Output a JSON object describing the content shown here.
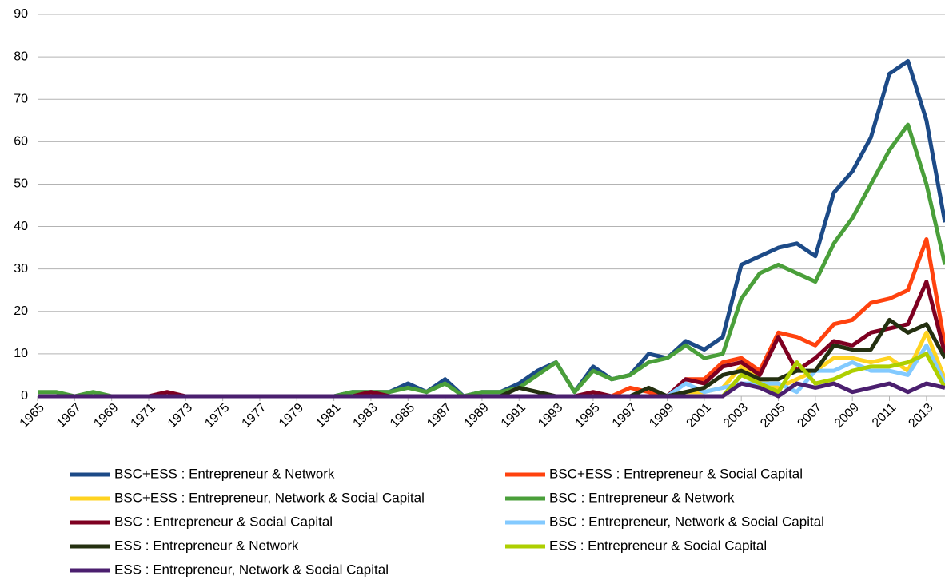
{
  "chart_data": {
    "type": "line",
    "x": [
      1965,
      1966,
      1967,
      1968,
      1969,
      1970,
      1971,
      1972,
      1973,
      1974,
      1975,
      1976,
      1977,
      1978,
      1979,
      1980,
      1981,
      1982,
      1983,
      1984,
      1985,
      1986,
      1987,
      1988,
      1989,
      1990,
      1991,
      1992,
      1993,
      1994,
      1995,
      1996,
      1997,
      1998,
      1999,
      2000,
      2001,
      2002,
      2003,
      2004,
      2005,
      2006,
      2007,
      2008,
      2009,
      2010,
      2011,
      2012,
      2013,
      2014
    ],
    "xlim": [
      1965,
      2014
    ],
    "xticks": [
      1965,
      1967,
      1969,
      1971,
      1973,
      1975,
      1977,
      1979,
      1981,
      1983,
      1985,
      1987,
      1989,
      1991,
      1993,
      1995,
      1997,
      1999,
      2001,
      2003,
      2005,
      2007,
      2009,
      2011,
      2013
    ],
    "ylim": [
      0,
      90
    ],
    "yticks": [
      0,
      10,
      20,
      30,
      40,
      50,
      60,
      70,
      80,
      90
    ],
    "grid": true,
    "legend": "bottom",
    "series": [
      {
        "name": "BSC+ESS : Entrepreneur & Network",
        "color": "#1c4a87",
        "values": [
          0,
          0,
          0,
          0,
          0,
          0,
          0,
          0,
          0,
          0,
          0,
          0,
          0,
          0,
          0,
          0,
          0,
          1,
          1,
          1,
          3,
          1,
          4,
          0,
          1,
          1,
          3,
          6,
          8,
          1,
          7,
          4,
          5,
          10,
          9,
          13,
          11,
          14,
          31,
          33,
          35,
          36,
          33,
          48,
          53,
          61,
          76,
          79,
          65,
          41
        ]
      },
      {
        "name": "BSC+ESS : Entrepreneur & Social Capital",
        "color": "#ff420e",
        "values": [
          0,
          0,
          0,
          0,
          0,
          0,
          0,
          0,
          0,
          0,
          0,
          0,
          0,
          0,
          0,
          0,
          0,
          0,
          0,
          0,
          0,
          0,
          0,
          0,
          0,
          0,
          0,
          0,
          0,
          0,
          0,
          0,
          2,
          1,
          0,
          4,
          4,
          8,
          9,
          6,
          15,
          14,
          12,
          17,
          18,
          22,
          23,
          25,
          37,
          12
        ]
      },
      {
        "name": "BSC+ESS : Entrepreneur, Network & Social Capital",
        "color": "#ffd320",
        "values": [
          0,
          0,
          0,
          0,
          0,
          0,
          0,
          0,
          0,
          0,
          0,
          0,
          0,
          0,
          0,
          0,
          0,
          0,
          0,
          0,
          0,
          0,
          0,
          0,
          0,
          0,
          0,
          0,
          0,
          0,
          0,
          0,
          0,
          0,
          0,
          1,
          1,
          2,
          7,
          4,
          2,
          4,
          6,
          9,
          9,
          8,
          9,
          6,
          15,
          4
        ]
      },
      {
        "name": "BSC : Entrepreneur & Network",
        "color": "#4a9f3a",
        "values": [
          1,
          1,
          0,
          1,
          0,
          0,
          0,
          0,
          0,
          0,
          0,
          0,
          0,
          0,
          0,
          0,
          0,
          1,
          1,
          1,
          2,
          1,
          3,
          0,
          1,
          1,
          2,
          5,
          8,
          1,
          6,
          4,
          5,
          8,
          9,
          12,
          9,
          10,
          23,
          29,
          31,
          29,
          27,
          36,
          42,
          50,
          58,
          64,
          50,
          31
        ]
      },
      {
        "name": "BSC : Entrepreneur & Social Capital",
        "color": "#7e0021",
        "values": [
          0,
          0,
          0,
          0,
          0,
          0,
          0,
          1,
          0,
          0,
          0,
          0,
          0,
          0,
          0,
          0,
          0,
          0,
          1,
          0,
          0,
          0,
          0,
          0,
          0,
          0,
          0,
          0,
          0,
          0,
          1,
          0,
          0,
          0,
          0,
          4,
          3,
          7,
          8,
          5,
          14,
          6,
          9,
          13,
          12,
          15,
          16,
          17,
          27,
          10
        ]
      },
      {
        "name": "BSC : Entrepreneur, Network & Social Capital",
        "color": "#83caff",
        "values": [
          0,
          0,
          0,
          0,
          0,
          0,
          0,
          0,
          0,
          0,
          0,
          0,
          0,
          0,
          0,
          0,
          0,
          0,
          0,
          0,
          0,
          0,
          0,
          0,
          0,
          0,
          0,
          0,
          0,
          0,
          0,
          0,
          0,
          0,
          0,
          3,
          1,
          2,
          3,
          3,
          3,
          1,
          6,
          6,
          8,
          6,
          6,
          5,
          12,
          3
        ]
      },
      {
        "name": "ESS : Entrepreneur & Network",
        "color": "#243010",
        "values": [
          0,
          0,
          0,
          0,
          0,
          0,
          0,
          0,
          0,
          0,
          0,
          0,
          0,
          0,
          0,
          0,
          0,
          0,
          0,
          0,
          0,
          0,
          0,
          0,
          0,
          0,
          2,
          1,
          0,
          0,
          0,
          0,
          0,
          2,
          0,
          1,
          2,
          5,
          6,
          4,
          4,
          6,
          6,
          12,
          11,
          11,
          18,
          15,
          17,
          9
        ]
      },
      {
        "name": "ESS : Entrepreneur & Social Capital",
        "color": "#aecf00",
        "values": [
          0,
          0,
          0,
          0,
          0,
          0,
          0,
          0,
          0,
          0,
          0,
          0,
          0,
          0,
          0,
          0,
          0,
          0,
          0,
          0,
          0,
          0,
          0,
          0,
          0,
          0,
          0,
          0,
          0,
          0,
          0,
          0,
          0,
          0,
          0,
          0,
          0,
          0,
          5,
          3,
          1,
          8,
          3,
          4,
          6,
          7,
          7,
          8,
          10,
          2
        ]
      },
      {
        "name": "ESS : Entrepreneur, Network & Social Capital",
        "color": "#4b1f6f",
        "values": [
          0,
          0,
          0,
          0,
          0,
          0,
          0,
          0,
          0,
          0,
          0,
          0,
          0,
          0,
          0,
          0,
          0,
          0,
          0,
          0,
          0,
          0,
          0,
          0,
          0,
          0,
          0,
          0,
          0,
          0,
          0,
          0,
          0,
          0,
          0,
          0,
          0,
          0,
          3,
          2,
          0,
          3,
          2,
          3,
          1,
          2,
          3,
          1,
          3,
          2
        ]
      }
    ]
  }
}
